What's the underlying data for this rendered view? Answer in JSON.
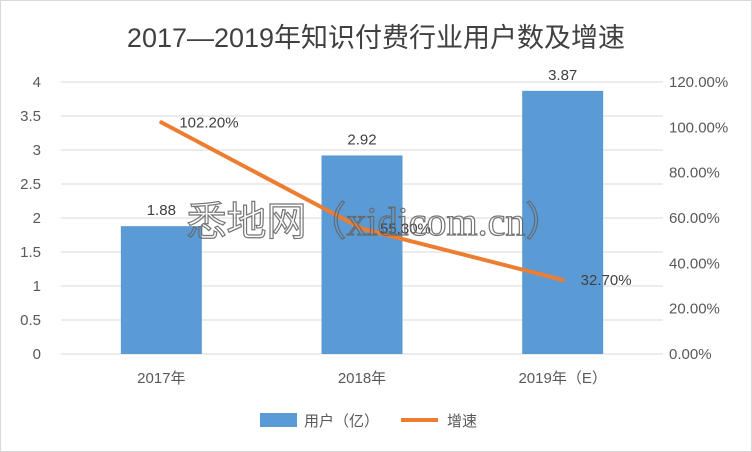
{
  "chart_data": {
    "type": "bar",
    "title": "2017—2019年知识付费行业用户数及增速",
    "categories": [
      "2017年",
      "2018年",
      "2019年（E）"
    ],
    "series": [
      {
        "name": "用户（亿）",
        "type": "bar",
        "axis": "left",
        "color": "#5B9BD5",
        "values": [
          1.88,
          2.92,
          3.87
        ],
        "labels": [
          "1.88",
          "2.92",
          "3.87"
        ]
      },
      {
        "name": "增速",
        "type": "line",
        "axis": "right",
        "color": "#ED7D31",
        "values": [
          102.2,
          55.3,
          32.7
        ],
        "labels": [
          "102.20%",
          "55.30%",
          "32.70%"
        ]
      }
    ],
    "left_axis": {
      "ylim": [
        0,
        4
      ],
      "ticks": [
        "0",
        "0.5",
        "1",
        "1.5",
        "2",
        "2.5",
        "3",
        "3.5",
        "4"
      ]
    },
    "right_axis": {
      "ylim": [
        0,
        120
      ],
      "ticks": [
        "0.00%",
        "20.00%",
        "40.00%",
        "60.00%",
        "80.00%",
        "100.00%",
        "120.00%"
      ]
    },
    "grid": true,
    "legend": "bottom",
    "watermark": "悉地网（xidicom.cn）"
  }
}
